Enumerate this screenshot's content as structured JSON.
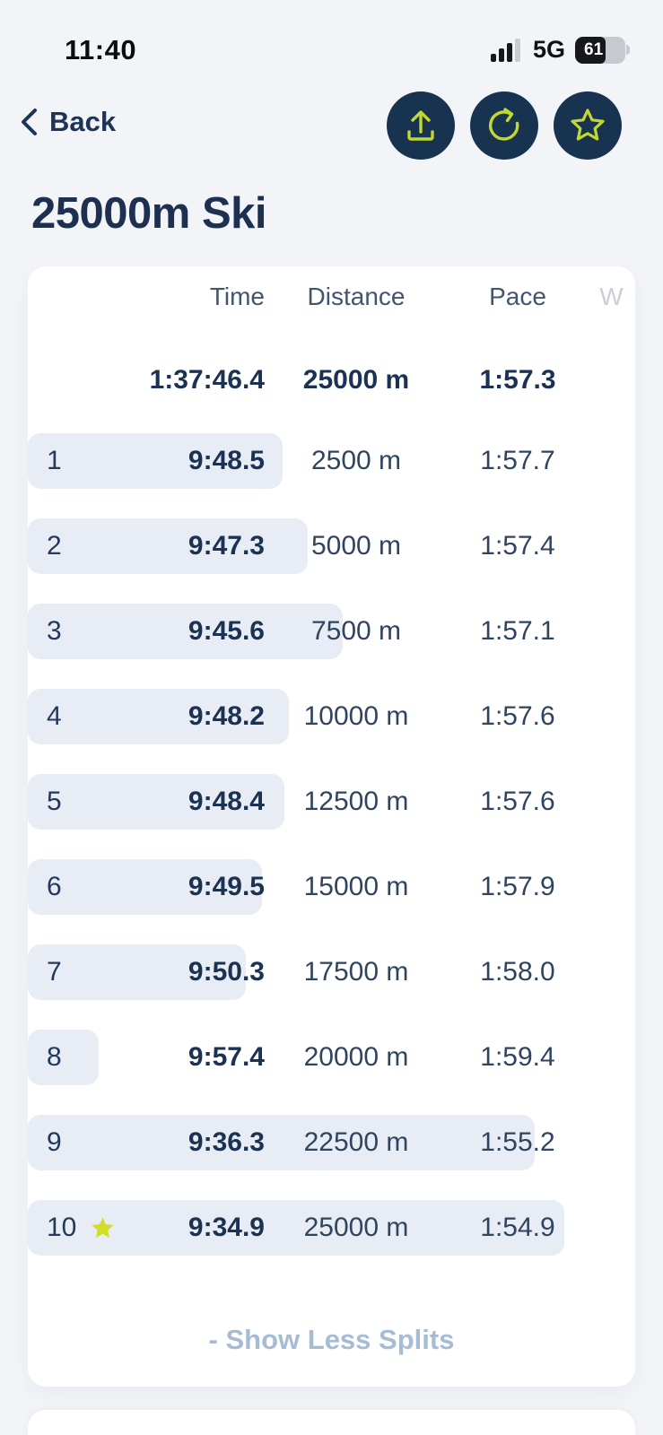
{
  "status_bar": {
    "time": "11:40",
    "network": "5G",
    "battery_percent": "61"
  },
  "nav": {
    "back_label": "Back"
  },
  "header_actions": [
    {
      "icon": "share-upload-icon"
    },
    {
      "icon": "refresh-icon"
    },
    {
      "icon": "star-outline-icon"
    }
  ],
  "page": {
    "title": "25000m Ski"
  },
  "splits_card": {
    "columns": {
      "time": "Time",
      "distance": "Distance",
      "pace": "Pace",
      "watts_truncated": "W"
    },
    "summary": {
      "time": "1:37:46.4",
      "distance": "25000 m",
      "pace": "1:57.3"
    },
    "splits": [
      {
        "number": "1",
        "time": "9:48.5",
        "distance": "2500 m",
        "pace": "1:57.7",
        "starred": false
      },
      {
        "number": "2",
        "time": "9:47.3",
        "distance": "5000 m",
        "pace": "1:57.4",
        "starred": false
      },
      {
        "number": "3",
        "time": "9:45.6",
        "distance": "7500 m",
        "pace": "1:57.1",
        "starred": false
      },
      {
        "number": "4",
        "time": "9:48.2",
        "distance": "10000 m",
        "pace": "1:57.6",
        "starred": false
      },
      {
        "number": "5",
        "time": "9:48.4",
        "distance": "12500 m",
        "pace": "1:57.6",
        "starred": false
      },
      {
        "number": "6",
        "time": "9:49.5",
        "distance": "15000 m",
        "pace": "1:57.9",
        "starred": false
      },
      {
        "number": "7",
        "time": "9:50.3",
        "distance": "17500 m",
        "pace": "1:58.0",
        "starred": false
      },
      {
        "number": "8",
        "time": "9:57.4",
        "distance": "20000 m",
        "pace": "1:59.4",
        "starred": false
      },
      {
        "number": "9",
        "time": "9:36.3",
        "distance": "22500 m",
        "pace": "1:55.2",
        "starred": false
      },
      {
        "number": "10",
        "time": "9:34.9",
        "distance": "25000 m",
        "pace": "1:54.9",
        "starred": true
      }
    ],
    "show_less_label": "- Show Less Splits"
  },
  "colors": {
    "page_background": "#f2f4f8",
    "accent_navy": "#17334f",
    "accent_lime": "#c2d832",
    "star_yellow": "#d4dd26",
    "bar_fill": "#e8edf5"
  }
}
